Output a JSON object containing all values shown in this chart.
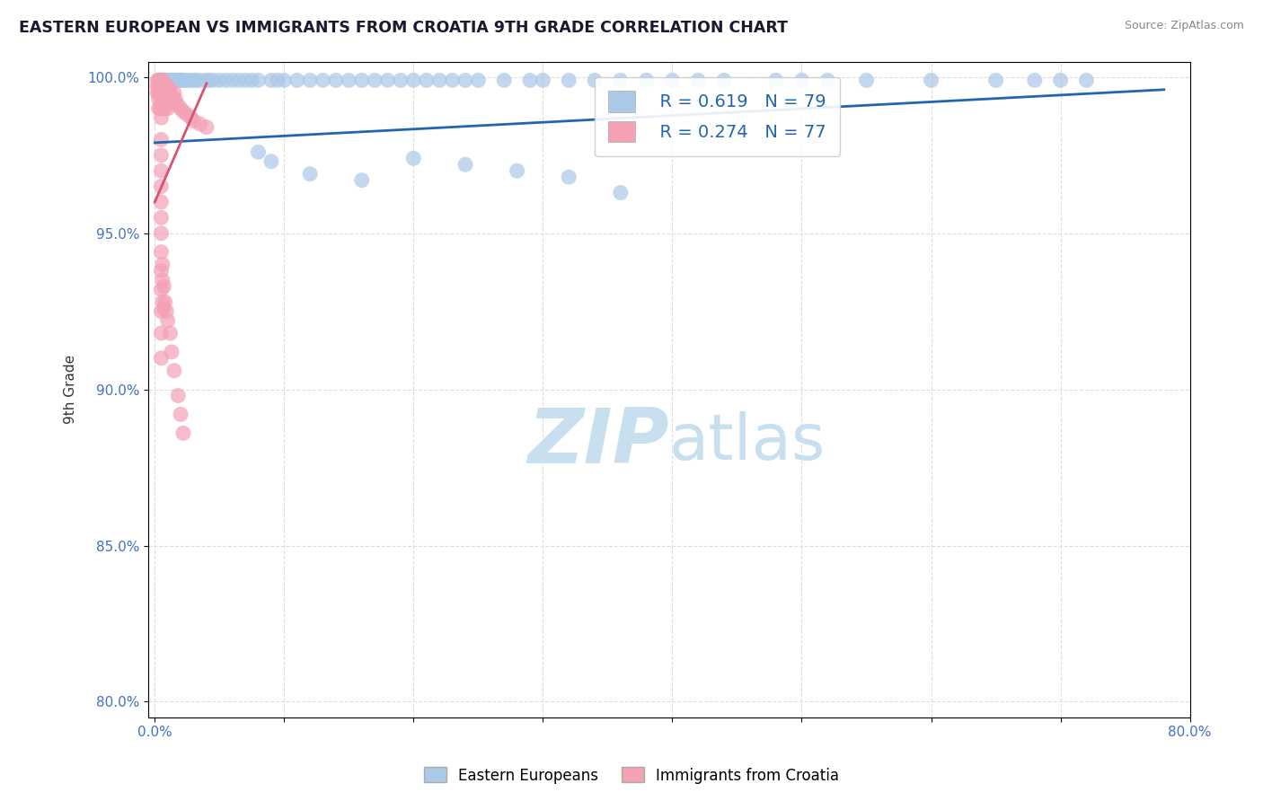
{
  "title": "EASTERN EUROPEAN VS IMMIGRANTS FROM CROATIA 9TH GRADE CORRELATION CHART",
  "source_text": "Source: ZipAtlas.com",
  "ylabel": "9th Grade",
  "xlim": [
    -0.005,
    0.8
  ],
  "ylim": [
    0.795,
    1.005
  ],
  "xticks": [
    0.0,
    0.1,
    0.2,
    0.3,
    0.4,
    0.5,
    0.6,
    0.7,
    0.8
  ],
  "xticklabels": [
    "0.0%",
    "",
    "",
    "",
    "",
    "",
    "",
    "",
    "80.0%"
  ],
  "yticks": [
    0.8,
    0.85,
    0.9,
    0.95,
    1.0
  ],
  "yticklabels": [
    "80.0%",
    "85.0%",
    "90.0%",
    "95.0%",
    "100.0%"
  ],
  "blue_color": "#aac8e8",
  "pink_color": "#f4a0b5",
  "blue_line_color": "#2166ac",
  "pink_line_color": "#d6546e",
  "legend_R_blue": "R = 0.619",
  "legend_N_blue": "N = 79",
  "legend_R_pink": "R = 0.274",
  "legend_N_pink": "N = 77",
  "watermark_zip": "ZIP",
  "watermark_atlas": "atlas",
  "watermark_color": "#c8dff0",
  "legend_label_blue": "Eastern Europeans",
  "legend_label_pink": "Immigrants from Croatia",
  "background_color": "#ffffff",
  "grid_color": "#dddddd",
  "blue_x": [
    0.003,
    0.004,
    0.005,
    0.006,
    0.007,
    0.008,
    0.009,
    0.01,
    0.01,
    0.012,
    0.013,
    0.014,
    0.015,
    0.016,
    0.018,
    0.02,
    0.021,
    0.022,
    0.025,
    0.027,
    0.03,
    0.032,
    0.035,
    0.04,
    0.042,
    0.045,
    0.05,
    0.055,
    0.06,
    0.065,
    0.07,
    0.075,
    0.08,
    0.09,
    0.095,
    0.1,
    0.11,
    0.12,
    0.13,
    0.14,
    0.15,
    0.16,
    0.17,
    0.18,
    0.19,
    0.2,
    0.21,
    0.22,
    0.23,
    0.24,
    0.25,
    0.27,
    0.29,
    0.3,
    0.32,
    0.34,
    0.36,
    0.38,
    0.4,
    0.42,
    0.44,
    0.48,
    0.5,
    0.52,
    0.55,
    0.6,
    0.65,
    0.68,
    0.7,
    0.72,
    0.08,
    0.09,
    0.12,
    0.16,
    0.2,
    0.24,
    0.28,
    0.32,
    0.36
  ],
  "blue_y": [
    0.999,
    0.999,
    0.999,
    0.999,
    0.999,
    0.999,
    0.999,
    0.999,
    0.997,
    0.999,
    0.999,
    0.999,
    0.999,
    0.999,
    0.999,
    0.999,
    0.999,
    0.999,
    0.999,
    0.999,
    0.999,
    0.999,
    0.999,
    0.999,
    0.999,
    0.999,
    0.999,
    0.999,
    0.999,
    0.999,
    0.999,
    0.999,
    0.999,
    0.999,
    0.999,
    0.999,
    0.999,
    0.999,
    0.999,
    0.999,
    0.999,
    0.999,
    0.999,
    0.999,
    0.999,
    0.999,
    0.999,
    0.999,
    0.999,
    0.999,
    0.999,
    0.999,
    0.999,
    0.999,
    0.999,
    0.999,
    0.999,
    0.999,
    0.999,
    0.999,
    0.999,
    0.999,
    0.999,
    0.999,
    0.999,
    0.999,
    0.999,
    0.999,
    0.999,
    0.999,
    0.976,
    0.973,
    0.969,
    0.967,
    0.974,
    0.972,
    0.97,
    0.968,
    0.963
  ],
  "pink_x": [
    0.002,
    0.002,
    0.002,
    0.003,
    0.003,
    0.003,
    0.003,
    0.003,
    0.004,
    0.004,
    0.004,
    0.004,
    0.005,
    0.005,
    0.005,
    0.005,
    0.005,
    0.005,
    0.005,
    0.006,
    0.006,
    0.006,
    0.006,
    0.007,
    0.007,
    0.007,
    0.008,
    0.008,
    0.008,
    0.009,
    0.009,
    0.01,
    0.01,
    0.01,
    0.011,
    0.011,
    0.012,
    0.013,
    0.014,
    0.015,
    0.015,
    0.016,
    0.018,
    0.02,
    0.022,
    0.025,
    0.028,
    0.03,
    0.035,
    0.04,
    0.005,
    0.005,
    0.005,
    0.005,
    0.005,
    0.005,
    0.005,
    0.005,
    0.005,
    0.005,
    0.005,
    0.005,
    0.005,
    0.006,
    0.006,
    0.006,
    0.007,
    0.007,
    0.008,
    0.009,
    0.01,
    0.012,
    0.013,
    0.015,
    0.018,
    0.02,
    0.022
  ],
  "pink_y": [
    0.999,
    0.997,
    0.995,
    0.999,
    0.997,
    0.995,
    0.993,
    0.99,
    0.999,
    0.997,
    0.995,
    0.99,
    0.999,
    0.998,
    0.996,
    0.994,
    0.992,
    0.99,
    0.987,
    0.999,
    0.997,
    0.994,
    0.99,
    0.998,
    0.995,
    0.991,
    0.997,
    0.994,
    0.99,
    0.996,
    0.993,
    0.997,
    0.994,
    0.99,
    0.996,
    0.992,
    0.995,
    0.994,
    0.993,
    0.995,
    0.992,
    0.993,
    0.991,
    0.99,
    0.989,
    0.988,
    0.987,
    0.986,
    0.985,
    0.984,
    0.98,
    0.975,
    0.97,
    0.965,
    0.96,
    0.955,
    0.95,
    0.944,
    0.938,
    0.932,
    0.925,
    0.918,
    0.91,
    0.94,
    0.935,
    0.928,
    0.933,
    0.926,
    0.928,
    0.925,
    0.922,
    0.918,
    0.912,
    0.906,
    0.898,
    0.892,
    0.886
  ],
  "blue_trendline_x": [
    0.0,
    0.78
  ],
  "blue_trendline_y": [
    0.979,
    0.996
  ],
  "pink_trendline_x": [
    0.0,
    0.04
  ],
  "pink_trendline_y": [
    0.96,
    0.998
  ]
}
